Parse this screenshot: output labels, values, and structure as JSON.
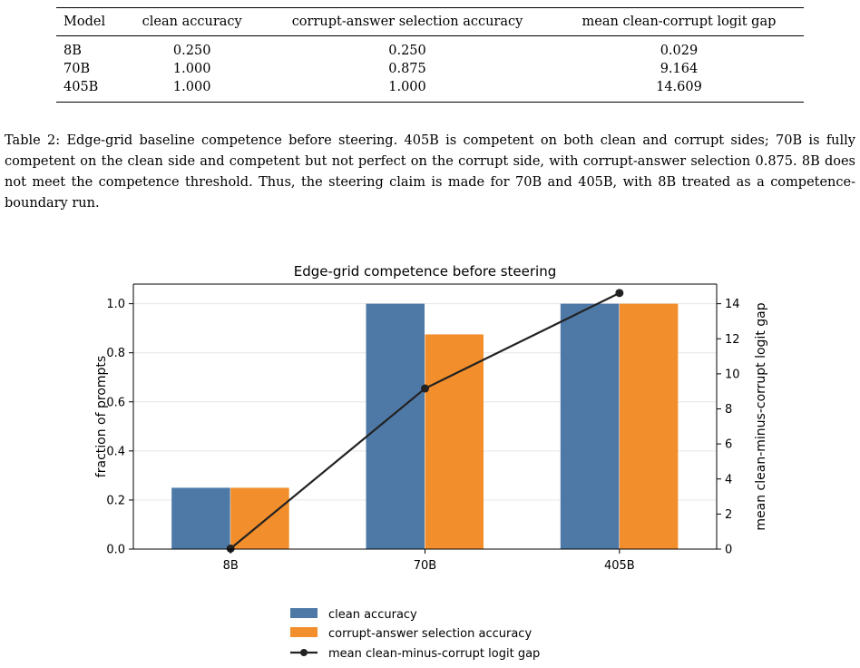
{
  "table": {
    "headers": [
      "Model",
      "clean accuracy",
      "corrupt-answer selection accuracy",
      "mean clean-corrupt logit gap"
    ],
    "rows": [
      [
        "8B",
        "0.250",
        "0.250",
        "0.029"
      ],
      [
        "70B",
        "1.000",
        "0.875",
        "9.164"
      ],
      [
        "405B",
        "1.000",
        "1.000",
        "14.609"
      ]
    ]
  },
  "caption": {
    "label": "Table 2:",
    "text": "Edge-grid baseline competence before steering. 405B is competent on both clean and corrupt sides; 70B is fully competent on the clean side and competent but not perfect on the corrupt side, with corrupt-answer selection 0.875. 8B does not meet the competence threshold. Thus, the steering claim is made for 70B and 405B, with 8B treated as a competence-boundary run."
  },
  "chart_data": {
    "type": "bar",
    "title": "Edge-grid competence before steering",
    "categories": [
      "8B",
      "70B",
      "405B"
    ],
    "series": [
      {
        "name": "clean accuracy",
        "type": "bar",
        "axis": "left",
        "color": "#4e79a7",
        "values": [
          0.25,
          1.0,
          1.0
        ]
      },
      {
        "name": "corrupt-answer selection accuracy",
        "type": "bar",
        "axis": "left",
        "color": "#f28e2b",
        "values": [
          0.25,
          0.875,
          1.0
        ]
      },
      {
        "name": "mean clean-minus-corrupt logit gap",
        "type": "line",
        "axis": "right",
        "color": "#222222",
        "values": [
          0.029,
          9.164,
          14.609
        ]
      }
    ],
    "ylabel": "fraction of prompts",
    "ylim": [
      0,
      1.08
    ],
    "yticks": [
      "0.0",
      "0.2",
      "0.4",
      "0.6",
      "0.8",
      "1.0"
    ],
    "y2label": "mean clean-minus-corrupt logit gap",
    "y2lim": [
      0,
      15.12
    ],
    "y2ticks": [
      "0",
      "2",
      "4",
      "6",
      "8",
      "10",
      "12",
      "14"
    ],
    "grid": "horizontal",
    "legend": "below"
  }
}
